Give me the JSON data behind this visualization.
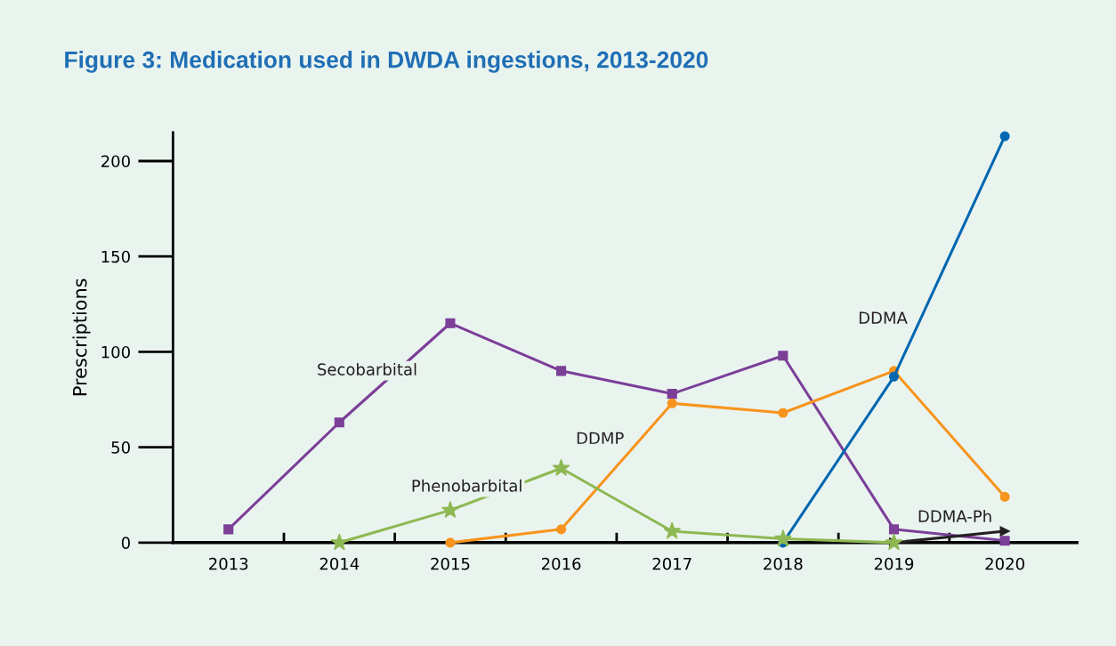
{
  "chart_data": {
    "type": "line",
    "title": "Figure 3: Medication used in DWDA ingestions, 2013-2020",
    "ylabel": "Prescriptions",
    "categories": [
      "2013",
      "2014",
      "2015",
      "2016",
      "2017",
      "2018",
      "2019",
      "2020"
    ],
    "series": [
      {
        "name": "Secobarbital",
        "color": "#7b3f98",
        "marker": "square",
        "values": [
          7,
          63,
          115,
          90,
          78,
          98,
          7,
          1
        ]
      },
      {
        "name": "Phenobarbital",
        "color": "#8db852",
        "marker": "star",
        "values": [
          null,
          0,
          17,
          39,
          6,
          2,
          0,
          null
        ]
      },
      {
        "name": "DDMP",
        "color": "#f7941d",
        "marker": "circle",
        "values": [
          null,
          null,
          0,
          7,
          73,
          68,
          90,
          24
        ]
      },
      {
        "name": "DDMA",
        "color": "#0067b1",
        "marker": "circle",
        "values": [
          null,
          null,
          null,
          null,
          null,
          0,
          87,
          213
        ]
      },
      {
        "name": "DDMA-Ph",
        "color": "#231f20",
        "marker": "triangle",
        "values": [
          null,
          null,
          null,
          null,
          null,
          null,
          0,
          6
        ]
      }
    ],
    "ylim": [
      0,
      215
    ],
    "yticks": [
      0,
      50,
      100,
      150,
      200
    ],
    "grid": false,
    "legend": false,
    "line_style": "solid"
  }
}
